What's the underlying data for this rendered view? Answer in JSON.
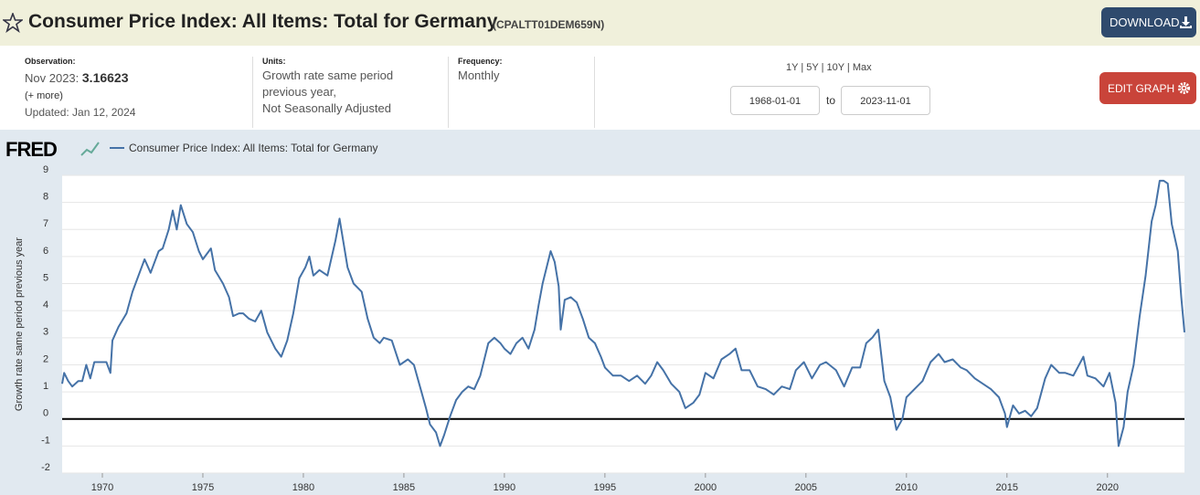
{
  "header": {
    "title": "Consumer Price Index: All Items: Total for Germany",
    "series_id": "(CPALTT01DEM659N)",
    "download": "DOWNLOAD"
  },
  "info": {
    "observation_label": "Observation:",
    "observation_date": "Nov 2023:",
    "observation_value": "3.16623",
    "more": "(+ more)",
    "updated": "Updated: Jan 12, 2024",
    "units_label": "Units:",
    "units": [
      "Growth rate same period",
      "previous year,",
      "Not Seasonally Adjusted"
    ],
    "frequency_label": "Frequency:",
    "frequency": "Monthly",
    "ranges": [
      "1Y",
      "5Y",
      "10Y",
      "Max"
    ],
    "start_date": "1968-01-01",
    "to": "to",
    "end_date": "2023-11-01",
    "edit": "EDIT GRAPH"
  },
  "chart_data": {
    "type": "line",
    "logo": "FRED",
    "ylabel": "Growth rate same period previous year",
    "xlim": [
      1968.0,
      2023.83
    ],
    "ylim": [
      -2,
      9
    ],
    "xticks": [
      1970,
      1975,
      1980,
      1985,
      1990,
      1995,
      2000,
      2005,
      2010,
      2015,
      2020
    ],
    "yticks": [
      -2,
      -1,
      0,
      1,
      2,
      3,
      4,
      5,
      6,
      7,
      8,
      9
    ],
    "grid": true,
    "series": [
      {
        "name": "Consumer Price Index: All Items: Total for Germany",
        "color": "#4572a7",
        "x": [
          1968.0,
          1968.1,
          1968.3,
          1968.5,
          1968.8,
          1969.0,
          1969.2,
          1969.4,
          1969.6,
          1969.9,
          1970.2,
          1970.4,
          1970.5,
          1970.8,
          1971.2,
          1971.5,
          1971.9,
          1972.1,
          1972.4,
          1972.8,
          1973.0,
          1973.3,
          1973.5,
          1973.7,
          1973.9,
          1974.2,
          1974.5,
          1974.8,
          1975.0,
          1975.4,
          1975.6,
          1976.0,
          1976.3,
          1976.5,
          1976.8,
          1977.0,
          1977.3,
          1977.6,
          1977.9,
          1978.2,
          1978.6,
          1978.9,
          1979.2,
          1979.5,
          1979.8,
          1980.1,
          1980.3,
          1980.5,
          1980.8,
          1981.2,
          1981.6,
          1981.8,
          1982.0,
          1982.2,
          1982.5,
          1982.9,
          1983.2,
          1983.5,
          1983.8,
          1984.0,
          1984.4,
          1984.8,
          1985.2,
          1985.5,
          1985.8,
          1986.1,
          1986.3,
          1986.6,
          1986.8,
          1987.0,
          1987.3,
          1987.6,
          1987.9,
          1988.2,
          1988.5,
          1988.8,
          1989.2,
          1989.5,
          1989.8,
          1990.0,
          1990.3,
          1990.6,
          1990.9,
          1991.2,
          1991.5,
          1991.7,
          1991.9,
          1992.1,
          1992.3,
          1992.5,
          1992.7,
          1992.8,
          1993.0,
          1993.3,
          1993.6,
          1993.9,
          1994.2,
          1994.5,
          1994.8,
          1995.0,
          1995.4,
          1995.8,
          1996.2,
          1996.6,
          1997.0,
          1997.3,
          1997.6,
          1997.9,
          1998.3,
          1998.7,
          1999.0,
          1999.4,
          1999.7,
          2000.0,
          2000.4,
          2000.8,
          2001.2,
          2001.5,
          2001.8,
          2002.2,
          2002.6,
          2003.0,
          2003.4,
          2003.8,
          2004.2,
          2004.5,
          2004.9,
          2005.3,
          2005.7,
          2006.0,
          2006.5,
          2006.9,
          2007.3,
          2007.7,
          2008.0,
          2008.3,
          2008.6,
          2008.9,
          2009.2,
          2009.5,
          2009.8,
          2010.0,
          2010.4,
          2010.8,
          2011.2,
          2011.6,
          2011.9,
          2012.3,
          2012.7,
          2013.0,
          2013.4,
          2013.8,
          2014.2,
          2014.6,
          2014.9,
          2015.0,
          2015.3,
          2015.6,
          2015.9,
          2016.2,
          2016.5,
          2016.9,
          2017.2,
          2017.6,
          2017.9,
          2018.3,
          2018.8,
          2019.0,
          2019.4,
          2019.8,
          2020.1,
          2020.4,
          2020.55,
          2020.8,
          2021.0,
          2021.3,
          2021.6,
          2021.9,
          2022.2,
          2022.4,
          2022.6,
          2022.8,
          2023.0,
          2023.2,
          2023.5,
          2023.67,
          2023.83
        ],
        "values": [
          1.3,
          1.7,
          1.4,
          1.2,
          1.4,
          1.4,
          2.0,
          1.5,
          2.1,
          2.1,
          2.1,
          1.7,
          2.9,
          3.4,
          3.9,
          4.7,
          5.5,
          5.9,
          5.4,
          6.2,
          6.3,
          7.0,
          7.7,
          7.0,
          7.9,
          7.2,
          6.9,
          6.2,
          5.9,
          6.3,
          5.5,
          5.0,
          4.5,
          3.8,
          3.9,
          3.9,
          3.7,
          3.6,
          4.0,
          3.2,
          2.6,
          2.3,
          2.9,
          3.9,
          5.2,
          5.6,
          6.0,
          5.3,
          5.5,
          5.3,
          6.6,
          7.4,
          6.5,
          5.6,
          5.0,
          4.7,
          3.7,
          3.0,
          2.8,
          3.0,
          2.9,
          2.0,
          2.2,
          2.0,
          1.2,
          0.4,
          -0.2,
          -0.5,
          -1.0,
          -0.6,
          0.1,
          0.7,
          1.0,
          1.2,
          1.1,
          1.6,
          2.8,
          3.0,
          2.8,
          2.6,
          2.4,
          2.8,
          3.0,
          2.6,
          3.3,
          4.2,
          5.0,
          5.6,
          6.2,
          5.8,
          4.9,
          3.3,
          4.4,
          4.5,
          4.3,
          3.7,
          3.0,
          2.8,
          2.3,
          1.9,
          1.6,
          1.6,
          1.4,
          1.6,
          1.3,
          1.6,
          2.1,
          1.8,
          1.3,
          1.0,
          0.4,
          0.6,
          0.9,
          1.7,
          1.5,
          2.2,
          2.4,
          2.6,
          1.8,
          1.8,
          1.2,
          1.1,
          0.9,
          1.2,
          1.1,
          1.8,
          2.1,
          1.5,
          2.0,
          2.1,
          1.8,
          1.2,
          1.9,
          1.9,
          2.8,
          3.0,
          3.3,
          1.4,
          0.8,
          -0.4,
          0.0,
          0.8,
          1.1,
          1.4,
          2.1,
          2.4,
          2.1,
          2.2,
          1.9,
          1.8,
          1.5,
          1.3,
          1.1,
          0.8,
          0.2,
          -0.3,
          0.5,
          0.2,
          0.3,
          0.1,
          0.4,
          1.5,
          2.0,
          1.7,
          1.7,
          1.6,
          2.3,
          1.6,
          1.5,
          1.2,
          1.7,
          0.6,
          -1.0,
          -0.3,
          1.0,
          2.0,
          3.8,
          5.3,
          7.3,
          7.9,
          8.8,
          8.8,
          8.7,
          7.2,
          6.2,
          4.5,
          3.2
        ]
      }
    ]
  }
}
